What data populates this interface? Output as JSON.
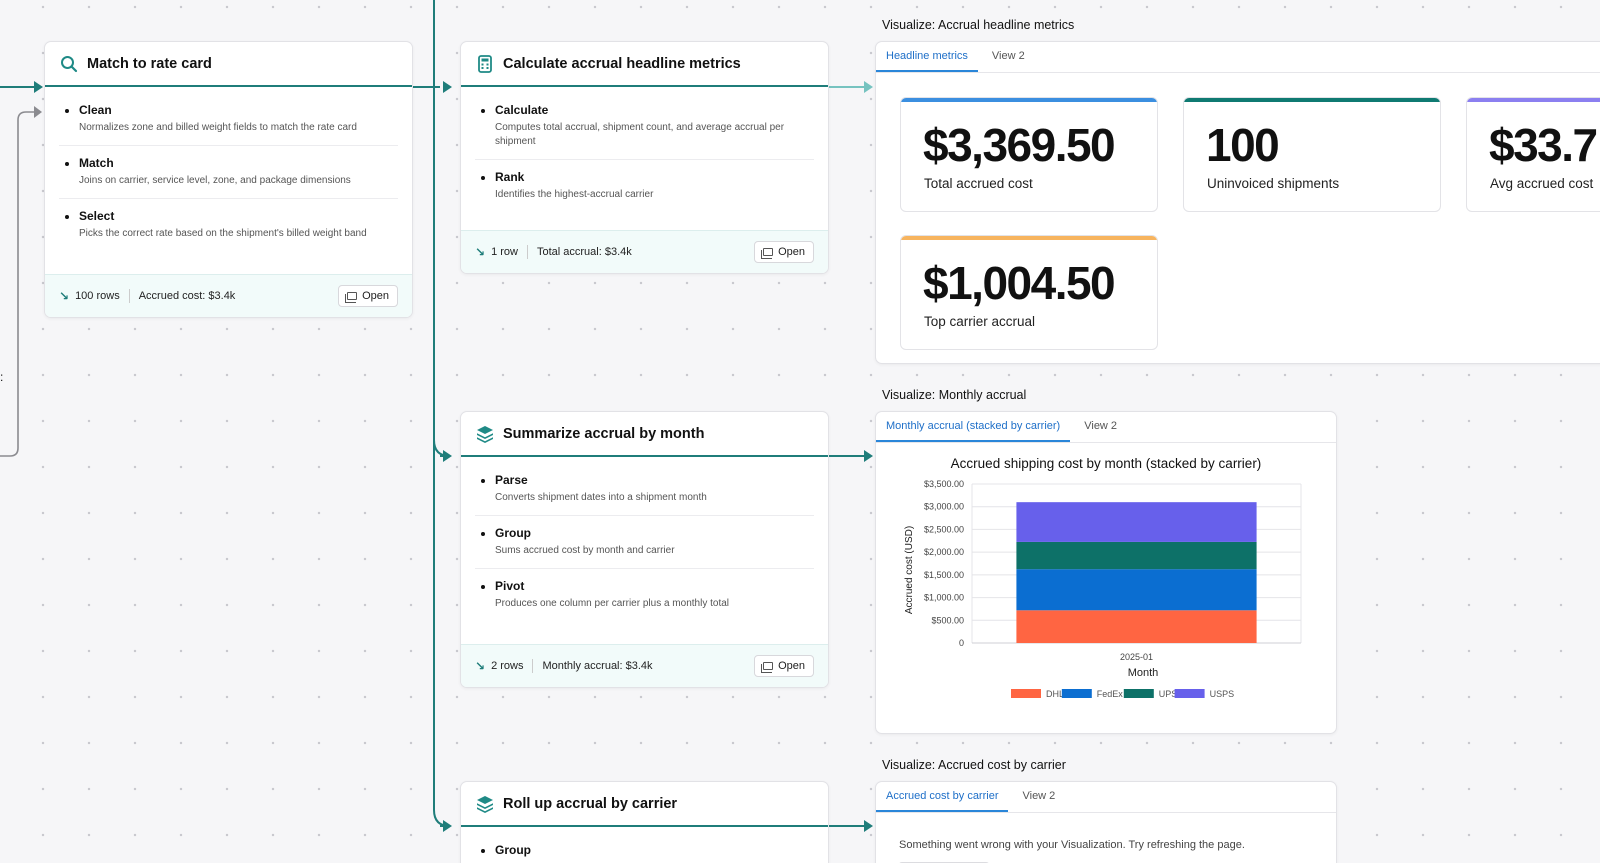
{
  "nodes": [
    {
      "title": "Match to rate card",
      "icon": "search-icon",
      "steps": [
        {
          "name": "Clean",
          "desc": "Normalizes zone and billed weight fields to match the rate card"
        },
        {
          "name": "Match",
          "desc": "Joins on carrier, service level, zone, and package dimensions"
        },
        {
          "name": "Select",
          "desc": "Picks the correct rate based on the shipment's billed weight band"
        }
      ],
      "rows": "100 rows",
      "summary": "Accrued cost: $3.4k",
      "open_label": "Open"
    },
    {
      "title": "Calculate accrual headline metrics",
      "icon": "calculator-icon",
      "steps": [
        {
          "name": "Calculate",
          "desc": "Computes total accrual, shipment count, and average accrual per shipment"
        },
        {
          "name": "Rank",
          "desc": "Identifies the highest-accrual carrier"
        }
      ],
      "rows": "1 row",
      "summary": "Total accrual: $3.4k",
      "open_label": "Open"
    },
    {
      "title": "Summarize accrual by month",
      "icon": "layers-icon",
      "steps": [
        {
          "name": "Parse",
          "desc": "Converts shipment dates into a shipment month"
        },
        {
          "name": "Group",
          "desc": "Sums accrued cost by month and carrier"
        },
        {
          "name": "Pivot",
          "desc": "Produces one column per carrier plus a monthly total"
        }
      ],
      "rows": "2 rows",
      "summary": "Monthly accrual: $3.4k",
      "open_label": "Open"
    },
    {
      "title": "Roll up accrual by carrier",
      "icon": "layers-icon",
      "steps": [
        {
          "name": "Group",
          "desc": ""
        }
      ]
    }
  ],
  "viz_headline": {
    "label": "Visualize: Accrual headline metrics",
    "tabs": [
      "Headline metrics",
      "View 2"
    ],
    "metrics": [
      {
        "value": "$3,369.50",
        "label": "Total accrued cost",
        "color": "#3b8fe0"
      },
      {
        "value": "100",
        "label": "Uninvoiced shipments",
        "color": "#0f7a72"
      },
      {
        "value": "$33.7",
        "label": "Avg accrued cost",
        "color": "#8b7ff0"
      },
      {
        "value": "$1,004.50",
        "label": "Top carrier accrual",
        "color": "#f7b45e"
      }
    ]
  },
  "viz_monthly": {
    "label": "Visualize: Monthly accrual",
    "tabs": [
      "Monthly accrual (stacked by carrier)",
      "View 2"
    ]
  },
  "viz_carrier": {
    "label": "Visualize: Accrued cost by carrier",
    "tabs": [
      "Accrued cost by carrier",
      "View 2"
    ],
    "error": "Something went wrong with your Visualization. Try refreshing the page."
  },
  "edge_label": ":",
  "chart_data": {
    "type": "bar",
    "stacked": true,
    "title": "Accrued shipping cost by month (stacked by carrier)",
    "xlabel": "Month",
    "ylabel": "Accrued cost (USD)",
    "categories": [
      "2025-01"
    ],
    "series": [
      {
        "name": "DHL",
        "values": [
          720
        ],
        "color": "#ff6542"
      },
      {
        "name": "FedEx",
        "values": [
          905
        ],
        "color": "#0b6ed1"
      },
      {
        "name": "UPS",
        "values": [
          600
        ],
        "color": "#0d7168"
      },
      {
        "name": "USPS",
        "values": [
          875
        ],
        "color": "#6760eb"
      }
    ],
    "ylim": [
      0,
      3500
    ],
    "yticks": [
      "0",
      "$500.00",
      "$1,000.00",
      "$1,500.00",
      "$2,000.00",
      "$2,500.00",
      "$3,000.00",
      "$3,500.00"
    ],
    "grid": true,
    "legend": "bottom"
  }
}
